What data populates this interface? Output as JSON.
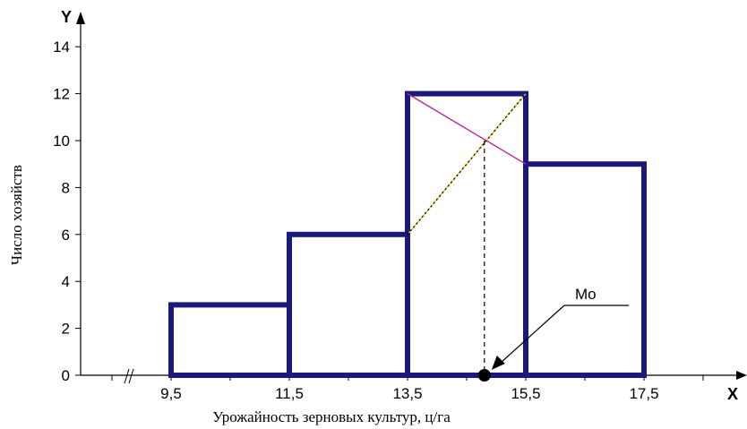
{
  "chart_data": {
    "type": "histogram",
    "x_letter": "X",
    "y_letter": "Y",
    "xlabel": "Урожайность зерновых культур, ц/га",
    "ylabel": "Число хозяйств",
    "x_ticks": [
      "9,5",
      "11,5",
      "13,5",
      "15,5",
      "17,5"
    ],
    "x_tick_values": [
      9.5,
      11.5,
      13.5,
      15.5,
      17.5
    ],
    "y_ticks": [
      0,
      2,
      4,
      6,
      8,
      10,
      12,
      14
    ],
    "ylim": [
      0,
      14
    ],
    "bins": [
      {
        "from": 9.5,
        "to": 11.5,
        "value": 3
      },
      {
        "from": 11.5,
        "to": 13.5,
        "value": 6
      },
      {
        "from": 13.5,
        "to": 15.5,
        "value": 12
      },
      {
        "from": 15.5,
        "to": 17.5,
        "value": 9
      }
    ],
    "mode": {
      "label": "Mo",
      "x": 14.8
    },
    "axis_break_symbol": "//",
    "colors": {
      "bars": "#1a1a7a",
      "diag_down": "#c0249a",
      "diag_up": "#e8d000",
      "axis": "#000000"
    }
  }
}
